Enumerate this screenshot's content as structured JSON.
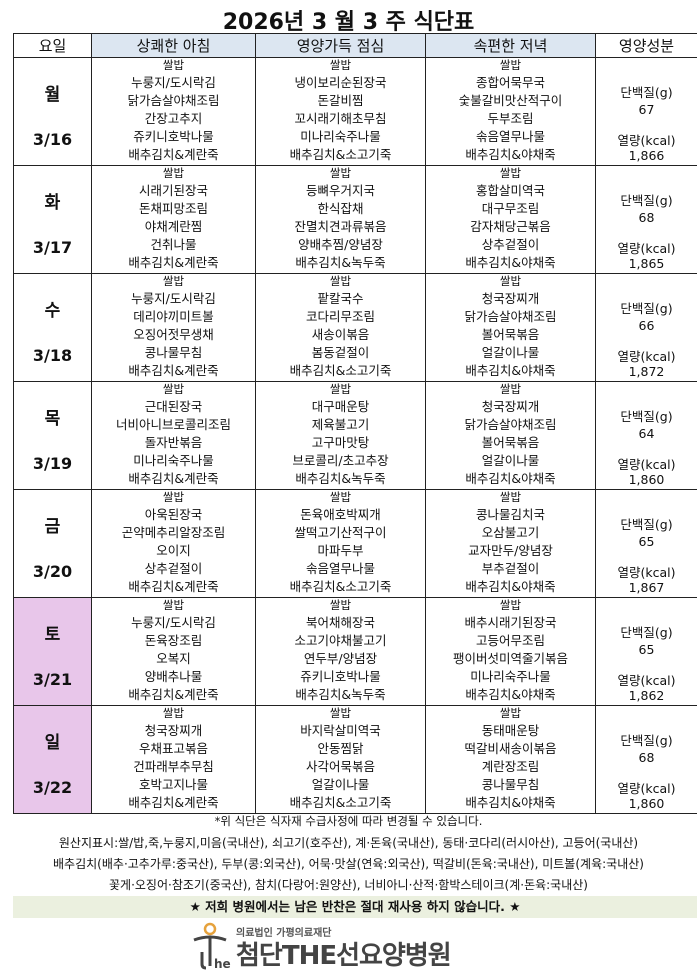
{
  "title": "2026년 3 월 3 주 식단표",
  "headers": {
    "day": "요일",
    "breakfast": "상쾌한 아침",
    "lunch": "영양가득 점심",
    "dinner": "속편한 저녁",
    "nutrition": "영양성분"
  },
  "nutrition_labels": {
    "protein": "단백질(g)",
    "calories": "열량(kcal)"
  },
  "colors": {
    "meal_header": "#dce6f1",
    "weekend": "#e8c6ea",
    "banner": "#ebf0df"
  },
  "days": [
    {
      "day": "월",
      "date": "3/16",
      "weekend": false,
      "breakfast": [
        "쌀밥",
        "누룽지/도시락김",
        "닭가슴살야채조림",
        "간장고추지",
        "쥬키니호박나물",
        "배추김치&계란죽"
      ],
      "lunch": [
        "쌀밥",
        "냉이보리순된장국",
        "돈갈비찜",
        "꼬시래기해초무침",
        "미나리숙주나물",
        "배추김치&소고기죽"
      ],
      "dinner": [
        "쌀밥",
        "종합어묵무국",
        "숯불갈비맛산적구이",
        "두부조림",
        "솎음열무나물",
        "배추김치&야채죽"
      ],
      "protein": "67",
      "calories": "1,866"
    },
    {
      "day": "화",
      "date": "3/17",
      "weekend": false,
      "breakfast": [
        "쌀밥",
        "시래기된장국",
        "돈채피망조림",
        "야채계란찜",
        "건취나물",
        "배추김치&계란죽"
      ],
      "lunch": [
        "쌀밥",
        "등뼈우거지국",
        "한식잡채",
        "잔멸치견과류볶음",
        "양배추찜/양념장",
        "배추김치&녹두죽"
      ],
      "dinner": [
        "쌀밥",
        "홍합살미역국",
        "대구무조림",
        "감자채당근볶음",
        "상추겉절이",
        "배추김치&야채죽"
      ],
      "protein": "68",
      "calories": "1,865"
    },
    {
      "day": "수",
      "date": "3/18",
      "weekend": false,
      "breakfast": [
        "쌀밥",
        "누룽지/도시락김",
        "데리야끼미트볼",
        "오징어젓무생채",
        "콩나물무침",
        "배추김치&계란죽"
      ],
      "lunch": [
        "쌀밥",
        "팥칼국수",
        "코다리무조림",
        "새송이볶음",
        "봄동겉절이",
        "배추김치&소고기죽"
      ],
      "dinner": [
        "쌀밥",
        "청국장찌개",
        "닭가슴살야채조림",
        "볼어묵볶음",
        "얼갈이나물",
        "배추김치&야채죽"
      ],
      "protein": "66",
      "calories": "1,872"
    },
    {
      "day": "목",
      "date": "3/19",
      "weekend": false,
      "breakfast": [
        "쌀밥",
        "근대된장국",
        "너비아니브로콜리조림",
        "돌자반볶음",
        "미나리숙주나물",
        "배추김치&계란죽"
      ],
      "lunch": [
        "쌀밥",
        "대구매운탕",
        "제육불고기",
        "고구마맛탕",
        "브로콜리/초고추장",
        "배추김치&녹두죽"
      ],
      "dinner": [
        "쌀밥",
        "청국장찌개",
        "닭가슴살야채조림",
        "볼어묵볶음",
        "얼갈이나물",
        "배추김치&야채죽"
      ],
      "protein": "64",
      "calories": "1,860"
    },
    {
      "day": "금",
      "date": "3/20",
      "weekend": false,
      "breakfast": [
        "쌀밥",
        "아욱된장국",
        "곤약메추리알장조림",
        "오이지",
        "상추겉절이",
        "배추김치&계란죽"
      ],
      "lunch": [
        "쌀밥",
        "돈육애호박찌개",
        "쌀떡고기산적구이",
        "마파두부",
        "솎음열무나물",
        "배추김치&소고기죽"
      ],
      "dinner": [
        "쌀밥",
        "콩나물김치국",
        "오삼불고기",
        "교자만두/양념장",
        "부추겉절이",
        "배추김치&야채죽"
      ],
      "protein": "65",
      "calories": "1,867"
    },
    {
      "day": "토",
      "date": "3/21",
      "weekend": true,
      "breakfast": [
        "쌀밥",
        "누룽지/도시락김",
        "돈육장조림",
        "오복지",
        "양배추나물",
        "배추김치&계란죽"
      ],
      "lunch": [
        "쌀밥",
        "북어채해장국",
        "소고기야채불고기",
        "연두부/양념장",
        "쥬키니호박나물",
        "배추김치&녹두죽"
      ],
      "dinner": [
        "쌀밥",
        "배추시래기된장국",
        "고등어무조림",
        "팽이버섯미역줄기볶음",
        "미나리숙주나물",
        "배추김치&야채죽"
      ],
      "protein": "65",
      "calories": "1,862"
    },
    {
      "day": "일",
      "date": "3/22",
      "weekend": true,
      "breakfast": [
        "쌀밥",
        "청국장찌개",
        "우채표고볶음",
        "건파래부추무침",
        "호박고지나물",
        "배추김치&계란죽"
      ],
      "lunch": [
        "쌀밥",
        "바지락살미역국",
        "안동찜닭",
        "사각어묵볶음",
        "얼갈이나물",
        "배추김치&소고기죽"
      ],
      "dinner": [
        "쌀밥",
        "동태매운탕",
        "떡갈비새송이볶음",
        "계란장조림",
        "콩나물무침",
        "배추김치&야채죽"
      ],
      "protein": "68",
      "calories": "1,860"
    }
  ],
  "footer": {
    "note": "*위 식단은 식자재 수급사정에 따라 변경될 수 있습니다.",
    "origin": [
      "원산지표시:쌀/밥,죽,누룽지,미음(국내산), 쇠고기(호주산), 계·돈육(국내산), 동태·코다리(러시아산), 고등어(국내산)",
      "배추김치(배추·고추가루:중국산), 두부(콩:외국산), 어묵·맛살(연육:외국산), 떡갈비(돈육:국내산), 미트볼(계육:국내산)",
      "꽃게·오징어·참조기(중국산), 참치(다랑어:원양산), 너비아니·산적·함박스테이크(계·돈육:국내산)"
    ],
    "banner": "★ 저희 병원에서는 남은 반찬은 절대 재사용 하지 않습니다. ★",
    "logo_sub": "의료법인 가평의료재단",
    "logo_main": "첨단THE선요양병원"
  }
}
